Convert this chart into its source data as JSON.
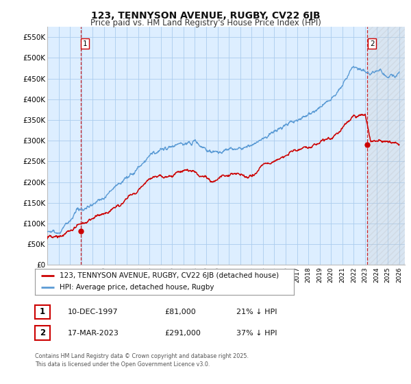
{
  "title": "123, TENNYSON AVENUE, RUGBY, CV22 6JB",
  "subtitle": "Price paid vs. HM Land Registry's House Price Index (HPI)",
  "ylabel_ticks": [
    "£0",
    "£50K",
    "£100K",
    "£150K",
    "£200K",
    "£250K",
    "£300K",
    "£350K",
    "£400K",
    "£450K",
    "£500K",
    "£550K"
  ],
  "ytick_vals": [
    0,
    50000,
    100000,
    150000,
    200000,
    250000,
    300000,
    350000,
    400000,
    450000,
    500000,
    550000
  ],
  "ylim": [
    0,
    575000
  ],
  "xlim_start": 1995.0,
  "xlim_end": 2026.5,
  "hpi_color": "#5b9bd5",
  "price_color": "#cc0000",
  "marker1_date": 1997.94,
  "marker1_price": 81000,
  "marker2_date": 2023.21,
  "marker2_price": 291000,
  "legend_label1": "123, TENNYSON AVENUE, RUGBY, CV22 6JB (detached house)",
  "legend_label2": "HPI: Average price, detached house, Rugby",
  "table_row1": [
    "1",
    "10-DEC-1997",
    "£81,000",
    "21% ↓ HPI"
  ],
  "table_row2": [
    "2",
    "17-MAR-2023",
    "£291,000",
    "37% ↓ HPI"
  ],
  "footnote": "Contains HM Land Registry data © Crown copyright and database right 2025.\nThis data is licensed under the Open Government Licence v3.0.",
  "bg_color": "#ffffff",
  "chart_bg_color": "#ddeeff",
  "grid_color": "#aaccee",
  "title_fontsize": 10,
  "subtitle_fontsize": 8.5,
  "tick_fontsize": 7.5
}
